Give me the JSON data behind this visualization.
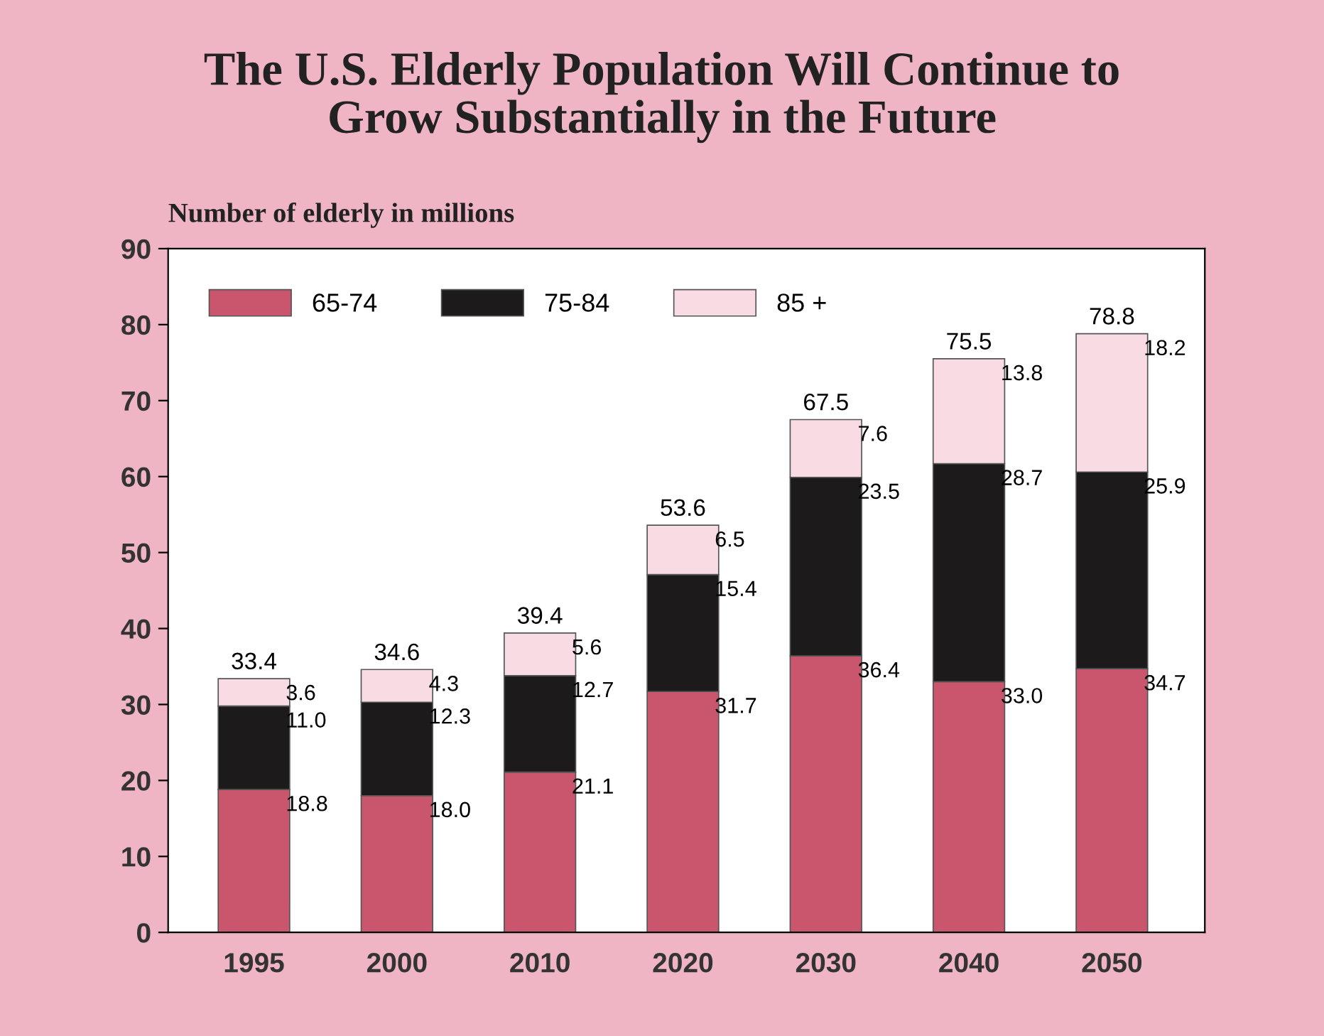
{
  "chart_data": {
    "type": "bar",
    "stacked": true,
    "title": "The U.S. Elderly Population Will Continue to\nGrow Substantially in the Future",
    "ylabel": "Number of elderly in millions",
    "categories": [
      "1995",
      "2000",
      "2010",
      "2020",
      "2030",
      "2040",
      "2050"
    ],
    "series": [
      {
        "name": "65-74",
        "color": "#c9566c",
        "values": [
          18.8,
          18.0,
          21.1,
          31.7,
          36.4,
          33.0,
          34.7
        ],
        "value_labels": [
          "18.8",
          "18.0",
          "21.1",
          "31.7",
          "36.4",
          "33.0",
          "34.7"
        ]
      },
      {
        "name": "75-84",
        "color": "#1c1a1b",
        "values": [
          11.0,
          12.3,
          12.7,
          15.4,
          23.5,
          28.7,
          25.9
        ],
        "value_labels": [
          "11.0",
          "12.3",
          "12.7",
          "15.4",
          "23.5",
          "28.7",
          "25.9"
        ]
      },
      {
        "name": "85 +",
        "color": "#f8dbe3",
        "values": [
          3.6,
          4.3,
          5.6,
          6.5,
          7.6,
          13.8,
          18.2
        ],
        "value_labels": [
          "3.6",
          "4.3",
          "5.6",
          "6.5",
          "7.6",
          "13.8",
          "18.2"
        ]
      }
    ],
    "totals": [
      "33.4",
      "34.6",
      "39.4",
      "53.6",
      "67.5",
      "75.5",
      "78.8"
    ],
    "ylim": [
      0,
      90
    ],
    "yticks": [
      0,
      10,
      20,
      30,
      40,
      50,
      60,
      70,
      80,
      90
    ],
    "grid": false,
    "legend": "top left"
  }
}
